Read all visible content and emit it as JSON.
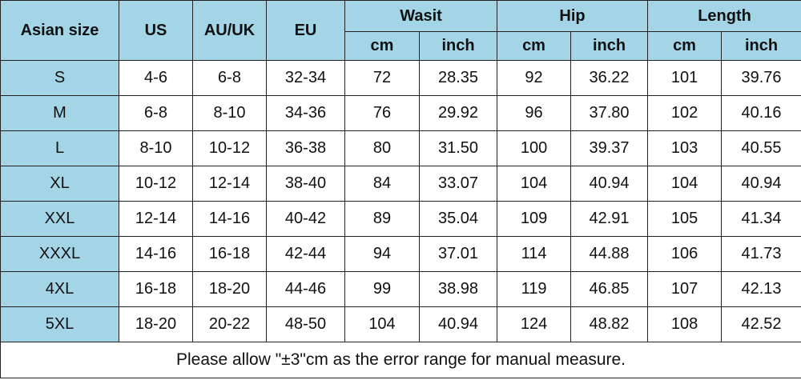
{
  "table": {
    "headers": {
      "asian_size": "Asian size",
      "us": "US",
      "au_uk": "AU/UK",
      "eu": "EU",
      "groups": [
        {
          "label": "Wasit",
          "sub": [
            "cm",
            "inch"
          ]
        },
        {
          "label": "Hip",
          "sub": [
            "cm",
            "inch"
          ]
        },
        {
          "label": "Length",
          "sub": [
            "cm",
            "inch"
          ]
        }
      ]
    },
    "rows": [
      [
        "S",
        "4-6",
        "6-8",
        "32-34",
        "72",
        "28.35",
        "92",
        "36.22",
        "101",
        "39.76"
      ],
      [
        "M",
        "6-8",
        "8-10",
        "34-36",
        "76",
        "29.92",
        "96",
        "37.80",
        "102",
        "40.16"
      ],
      [
        "L",
        "8-10",
        "10-12",
        "36-38",
        "80",
        "31.50",
        "100",
        "39.37",
        "103",
        "40.55"
      ],
      [
        "XL",
        "10-12",
        "12-14",
        "38-40",
        "84",
        "33.07",
        "104",
        "40.94",
        "104",
        "40.94"
      ],
      [
        "XXL",
        "12-14",
        "14-16",
        "40-42",
        "89",
        "35.04",
        "109",
        "42.91",
        "105",
        "41.34"
      ],
      [
        "XXXL",
        "14-16",
        "16-18",
        "42-44",
        "94",
        "37.01",
        "114",
        "44.88",
        "106",
        "41.73"
      ],
      [
        "4XL",
        "16-18",
        "18-20",
        "44-46",
        "99",
        "38.98",
        "119",
        "46.85",
        "107",
        "42.13"
      ],
      [
        "5XL",
        "18-20",
        "20-22",
        "48-50",
        "104",
        "40.94",
        "124",
        "48.82",
        "108",
        "42.52"
      ]
    ],
    "footer": "Please allow \"±3\"cm as the error range for manual measure."
  }
}
